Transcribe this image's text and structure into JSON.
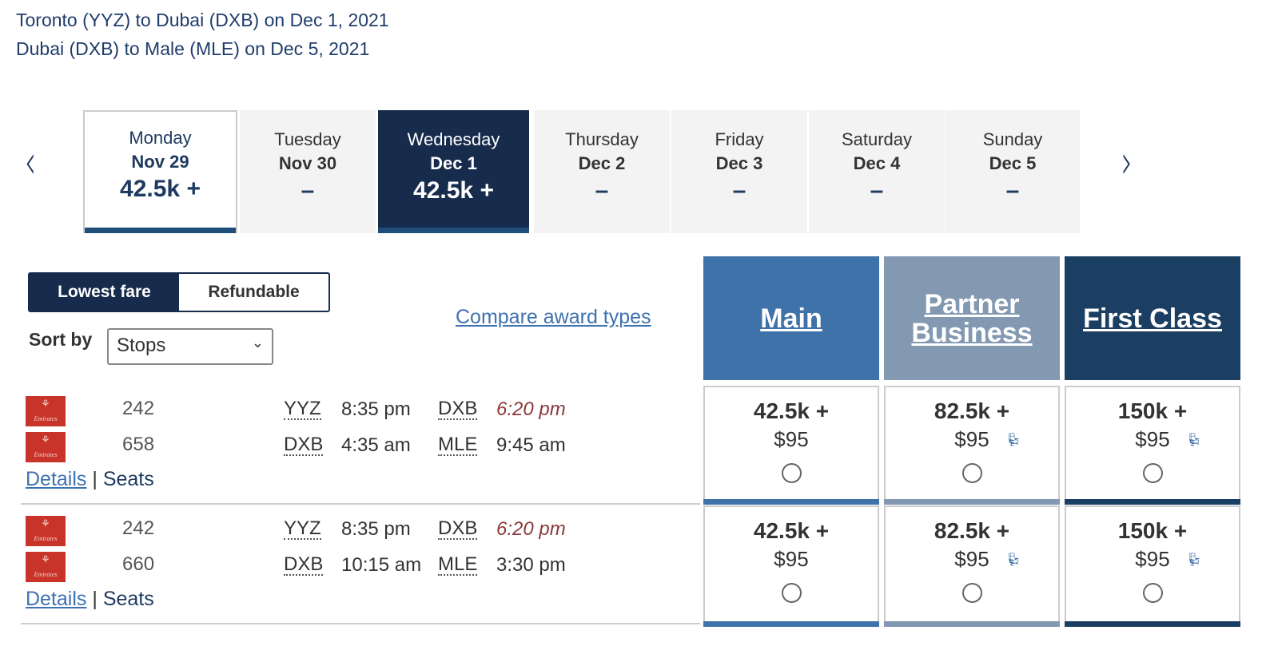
{
  "header": {
    "line1": "Toronto (YYZ) to Dubai (DXB) on Dec 1, 2021",
    "line2": "Dubai (DXB) to Male (MLE) on Dec 5, 2021"
  },
  "dates": [
    {
      "day": "Monday",
      "date": "Nov 29",
      "price": "42.5k +"
    },
    {
      "day": "Tuesday",
      "date": "Nov 30",
      "price": "–"
    },
    {
      "day": "Wednesday",
      "date": "Dec 1",
      "price": "42.5k +",
      "selected": true
    },
    {
      "day": "Thursday",
      "date": "Dec 2",
      "price": "–"
    },
    {
      "day": "Friday",
      "date": "Dec 3",
      "price": "–"
    },
    {
      "day": "Saturday",
      "date": "Dec 4",
      "price": "–"
    },
    {
      "day": "Sunday",
      "date": "Dec 5",
      "price": "–"
    }
  ],
  "nav": {
    "prev": "‹",
    "next": "›"
  },
  "toggle": {
    "lowest": "Lowest fare",
    "refundable": "Refundable"
  },
  "sort": {
    "label": "Sort by",
    "value": "Stops"
  },
  "compare": "Compare award types",
  "fare_classes": [
    {
      "name": "Main",
      "color": "#3f72a8"
    },
    {
      "name": "Partner Business",
      "color": "#8399b2"
    },
    {
      "name": "First Class",
      "color": "#1b3f63"
    }
  ],
  "flights": [
    {
      "segments": [
        {
          "airline": "Emirates",
          "number": "242",
          "from": "YYZ",
          "dep": "8:35 pm",
          "to": "DXB",
          "arr": "6:20 pm"
        },
        {
          "airline": "Emirates",
          "number": "658",
          "from": "DXB",
          "dep": "4:35 am",
          "to": "MLE",
          "arr": "9:45 am"
        }
      ],
      "fares": [
        {
          "points": "42.5k +",
          "cash": "$95"
        },
        {
          "points": "82.5k +",
          "cash": "$95"
        },
        {
          "points": "150k +",
          "cash": "$95"
        }
      ]
    },
    {
      "segments": [
        {
          "airline": "Emirates",
          "number": "242",
          "from": "YYZ",
          "dep": "8:35 pm",
          "to": "DXB",
          "arr": "6:20 pm"
        },
        {
          "airline": "Emirates",
          "number": "660",
          "from": "DXB",
          "dep": "10:15 am",
          "to": "MLE",
          "arr": "3:30 pm"
        }
      ],
      "fares": [
        {
          "points": "42.5k +",
          "cash": "$95"
        },
        {
          "points": "82.5k +",
          "cash": "$95"
        },
        {
          "points": "150k +",
          "cash": "$95"
        }
      ]
    }
  ],
  "links": {
    "details": "Details",
    "sep": "|",
    "seats": "Seats"
  },
  "icons": {
    "seat": "seat-icon",
    "logo": "emirates-logo"
  }
}
